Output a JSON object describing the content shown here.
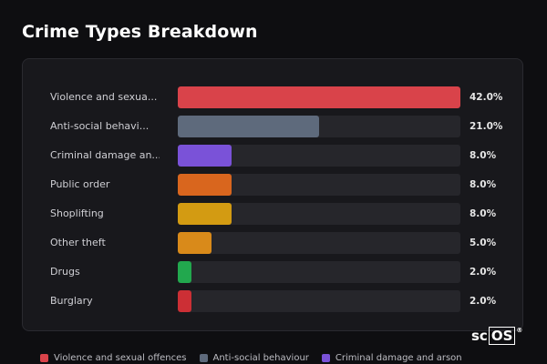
{
  "title": "Crime Types Breakdown",
  "brand": {
    "prefix": "sc",
    "boxed": "OS",
    "mark": "®"
  },
  "chart_data": {
    "type": "bar",
    "orientation": "horizontal",
    "title": "Crime Types Breakdown",
    "categories": [
      "Violence and sexua...",
      "Anti-social behavi...",
      "Criminal damage an...",
      "Public order",
      "Shoplifting",
      "Other theft",
      "Drugs",
      "Burglary"
    ],
    "values": [
      42.0,
      21.0,
      8.0,
      8.0,
      8.0,
      5.0,
      2.0,
      2.0
    ],
    "value_labels": [
      "42.0%",
      "21.0%",
      "8.0%",
      "8.0%",
      "8.0%",
      "5.0%",
      "2.0%",
      "2.0%"
    ],
    "colors": [
      "#d9434a",
      "#5e6a7c",
      "#7a52d8",
      "#d9661e",
      "#d39b12",
      "#d98a1a",
      "#22a84e",
      "#cc2f35"
    ],
    "xlim": [
      0,
      42
    ],
    "grid": false,
    "legend_position": "bottom"
  },
  "legend": [
    {
      "label": "Violence and sexual offences",
      "color": "#d9434a"
    },
    {
      "label": "Anti-social behaviour",
      "color": "#5e6a7c"
    },
    {
      "label": "Criminal damage and arson",
      "color": "#7a52d8"
    }
  ]
}
